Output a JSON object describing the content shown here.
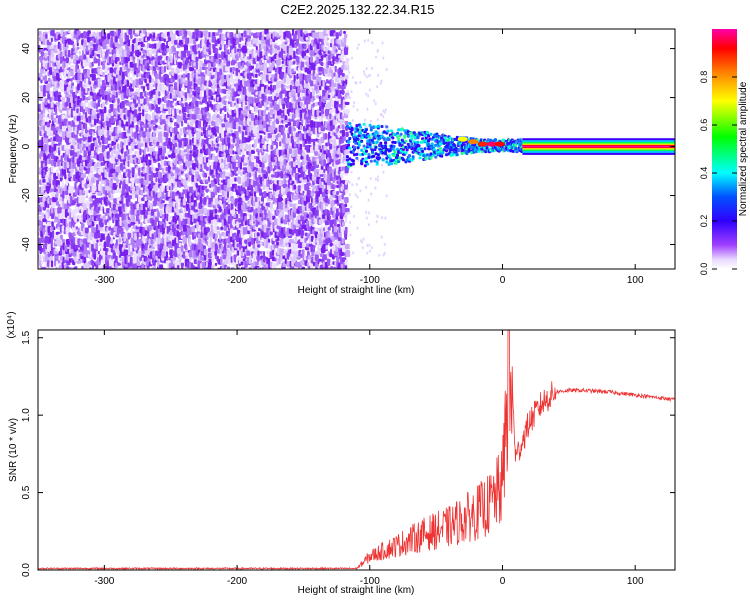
{
  "title": "C2E2.2025.132.22.34.R15",
  "chart_data": [
    {
      "type": "heatmap",
      "xlabel": "Height of straight line (km)",
      "ylabel": "Frequency (Hz)",
      "xlim": [
        -350,
        130
      ],
      "ylim": [
        -50,
        48
      ],
      "xticks": [
        -300,
        -200,
        -100,
        0,
        100
      ],
      "yticks": [
        -40,
        -20,
        0,
        20,
        40
      ],
      "colorbar": {
        "label": "Normalized spectral amplitude",
        "range": [
          0.0,
          1.0
        ],
        "ticks": [
          "0.0",
          "0.2",
          "0.4",
          "0.6",
          "0.8"
        ],
        "tick_values": [
          0.0,
          0.2,
          0.4,
          0.6,
          0.8
        ],
        "colormap": [
          "#ffffff",
          "#f0e0ff",
          "#8000ff",
          "#0000ff",
          "#00ffff",
          "#00ff00",
          "#ffff00",
          "#ff8000",
          "#ff0000",
          "#ff00aa"
        ]
      },
      "regions": [
        {
          "x": [
            -350,
            -118
          ],
          "description_level": 0.12
        },
        {
          "x": [
            -118,
            15
          ],
          "center_freq_hz": 1,
          "level": 0.35
        },
        {
          "x": [
            15,
            130
          ],
          "center_freq_hz": 0,
          "level": 0.95
        }
      ]
    },
    {
      "type": "line",
      "xlabel": "Height of straight line (km)",
      "ylabel": "SNR (10 * v/v)",
      "scale_note": "(x10⁴)",
      "xlim": [
        -350,
        130
      ],
      "ylim": [
        0,
        1.55
      ],
      "xticks": [
        -300,
        -200,
        -100,
        0,
        100
      ],
      "yticks": [
        "0.0",
        "0.5",
        "1.0",
        "1.5"
      ],
      "ytick_values": [
        0.0,
        0.5,
        1.0,
        1.5
      ],
      "color": "#ee3333",
      "series": [
        {
          "x": [
            -350,
            -110,
            -100,
            -80,
            -60,
            -40,
            -20,
            -10,
            0,
            5,
            10,
            20,
            30,
            40,
            50,
            60,
            80,
            100,
            130
          ],
          "values": [
            0.01,
            0.01,
            0.1,
            0.18,
            0.26,
            0.32,
            0.42,
            0.48,
            0.62,
            1.55,
            0.72,
            0.95,
            1.08,
            1.15,
            1.16,
            1.16,
            1.15,
            1.13,
            1.1
          ]
        }
      ]
    }
  ]
}
